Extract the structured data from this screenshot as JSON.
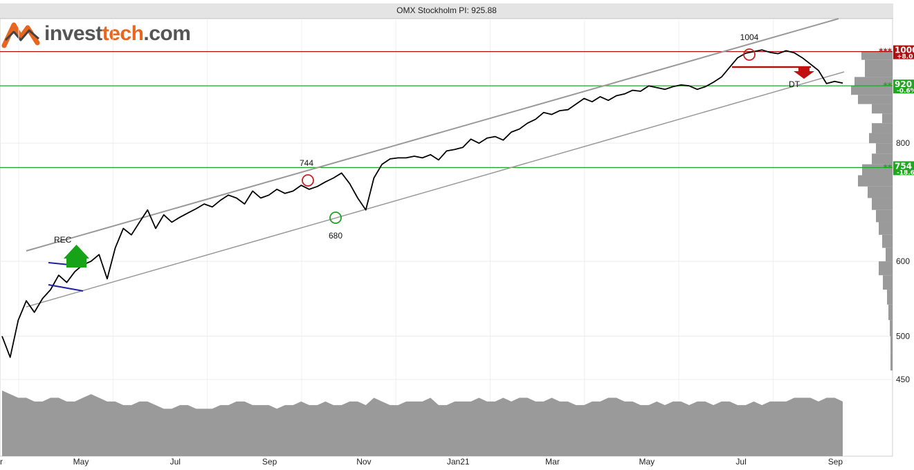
{
  "chart_data": {
    "type": "line",
    "title": "OMX Stockholm PI: 925.88",
    "scale": "log",
    "ylim": [
      420,
      1060
    ],
    "y_ticks": [
      {
        "value": 450,
        "label": "450"
      },
      {
        "value": 500,
        "label": "500"
      },
      {
        "value": 600,
        "label": "600"
      },
      {
        "value": 800,
        "label": "800"
      }
    ],
    "x_ticks": [
      "r",
      "May",
      "Jul",
      "Sep",
      "Nov",
      "Jan21",
      "Mar",
      "May",
      "Jul",
      "Sep"
    ],
    "series": [
      {
        "values": [
          500,
          475,
          520,
          545,
          530,
          548,
          560,
          580,
          570,
          585,
          595,
          600,
          610,
          575,
          620,
          650,
          640,
          660,
          680,
          650,
          672,
          660,
          668,
          675,
          682,
          690,
          685,
          696,
          705,
          700,
          690,
          712,
          700,
          705,
          715,
          708,
          712,
          722,
          715,
          720,
          728,
          735,
          744,
          725,
          700,
          680,
          735,
          760,
          770,
          772,
          772,
          775,
          772,
          778,
          768,
          785,
          788,
          792,
          808,
          800,
          810,
          813,
          806,
          822,
          828,
          840,
          848,
          862,
          858,
          866,
          868,
          880,
          892,
          885,
          896,
          888,
          898,
          902,
          910,
          908,
          920,
          916,
          912,
          918,
          922,
          920,
          912,
          918,
          928,
          940,
          962,
          985,
          996,
          1000,
          1004,
          998,
          995,
          1002,
          997,
          985,
          970,
          955,
          925,
          930,
          926
        ]
      }
    ],
    "volume": [
      18,
      17,
      16,
      16,
      15,
      15,
      16,
      16,
      15,
      15,
      16,
      17,
      16,
      15,
      15,
      14,
      14,
      15,
      15,
      14,
      13,
      13,
      14,
      14,
      13,
      13,
      13,
      14,
      14,
      15,
      15,
      14,
      14,
      14,
      13,
      14,
      14,
      15,
      14,
      14,
      15,
      14,
      14,
      15,
      15,
      14,
      16,
      15,
      14,
      14,
      15,
      15,
      15,
      16,
      14,
      14,
      15,
      15,
      15,
      16,
      15,
      15,
      16,
      15,
      16,
      16,
      15,
      15,
      16,
      15,
      15,
      14,
      14,
      15,
      15,
      16,
      16,
      15,
      15,
      14,
      14,
      15,
      14,
      15,
      15,
      14,
      15,
      15,
      14,
      15,
      15,
      14,
      14,
      15,
      14,
      15,
      15,
      15,
      16,
      16,
      16,
      15,
      16,
      16,
      15
    ],
    "annotations": {
      "rec": "REC",
      "dt": "DT",
      "high_label": "744",
      "low_label": "680",
      "peak_label": "1004",
      "left_stub": "r"
    },
    "levels": [
      {
        "value": 1000,
        "label": "1000",
        "sub": "+8.0",
        "stars": "***",
        "color": "#b01010"
      },
      {
        "value": 920,
        "label": "920",
        "sub": "-0.6%",
        "stars": "**",
        "color": "#1ea81e"
      },
      {
        "value": 754,
        "label": "754",
        "sub": "-18.6",
        "stars": "**",
        "color": "#1ea81e"
      }
    ],
    "grid": true,
    "colors": {
      "price": "#000000",
      "trend": "#999999",
      "volume": "#9a9a9a",
      "resistance": "#b01010",
      "support": "#1ea81e",
      "neckline": "#1f1f9f"
    }
  },
  "logo": {
    "part1": "invest",
    "part2": "tech",
    "part3": ".com"
  }
}
